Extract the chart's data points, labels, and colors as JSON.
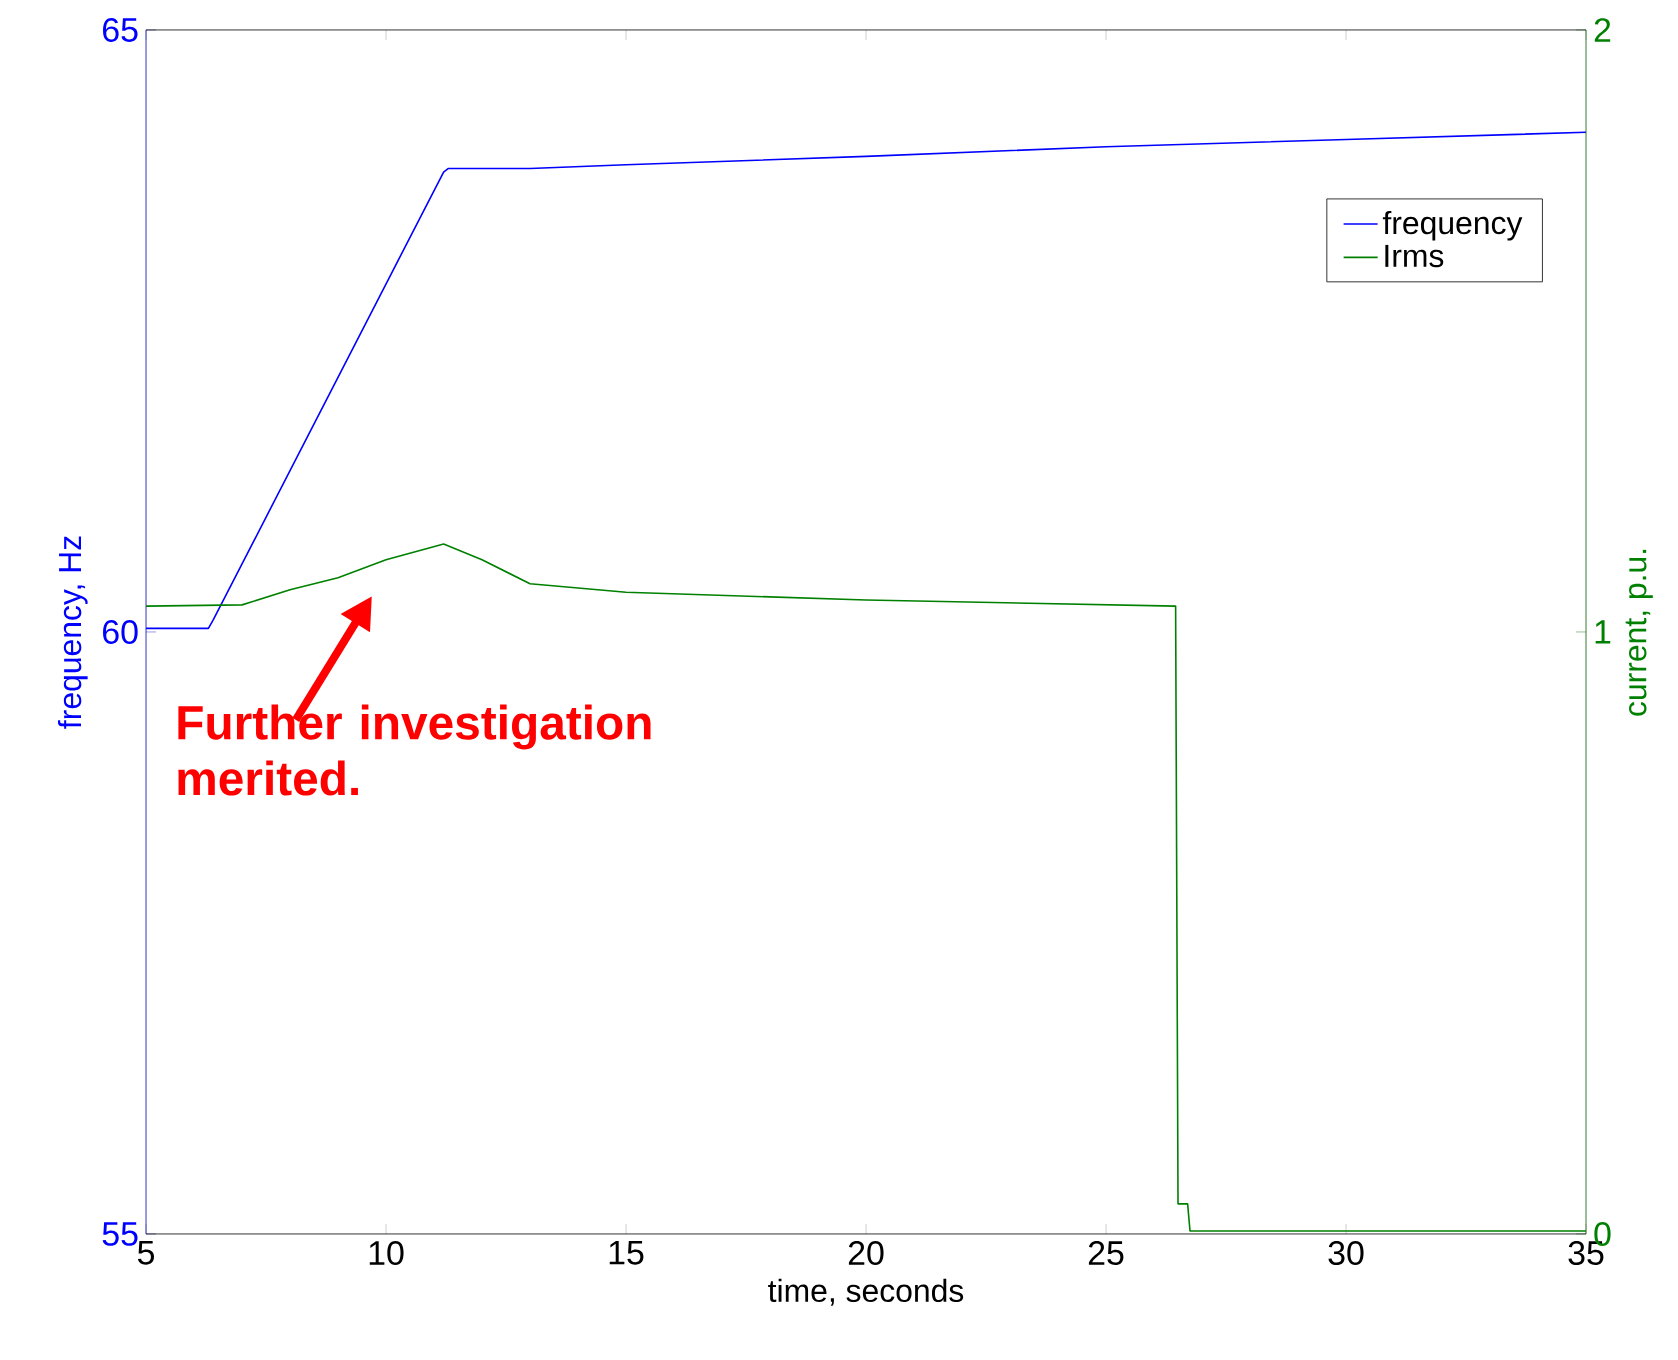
{
  "chart_data": {
    "type": "line",
    "xlabel": "time, seconds",
    "ylabel": "frequency, Hz",
    "y2label": "current, p.u.",
    "xlim": [
      5,
      35
    ],
    "xticks": [
      5,
      10,
      15,
      20,
      25,
      30,
      35
    ],
    "ylim": [
      55,
      65
    ],
    "yticks": [
      55,
      60,
      65
    ],
    "y2lim": [
      0,
      2
    ],
    "y2ticks": [
      0,
      1,
      2
    ],
    "legend": "top right",
    "annotations": [
      "Further investigation merited."
    ],
    "series": [
      {
        "name": "frequency",
        "color": "#0000ff",
        "x": [
          5,
          6.3,
          6.4,
          11.2,
          11.3,
          13,
          15,
          20,
          25,
          30,
          35
        ],
        "values": [
          60.03,
          60.03,
          60.1,
          63.82,
          63.85,
          63.85,
          63.88,
          63.95,
          64.03,
          64.09,
          64.15
        ]
      },
      {
        "name": "Irms",
        "color": "#008000",
        "axis": "y2",
        "x": [
          5,
          7,
          8,
          9,
          10,
          11.2,
          12,
          13,
          15,
          20,
          26.45,
          26.5,
          26.7,
          26.75,
          35
        ],
        "values": [
          1.043,
          1.045,
          1.07,
          1.09,
          1.12,
          1.146,
          1.12,
          1.08,
          1.066,
          1.053,
          1.043,
          0.05,
          0.05,
          0.005,
          0.005
        ]
      }
    ]
  }
}
